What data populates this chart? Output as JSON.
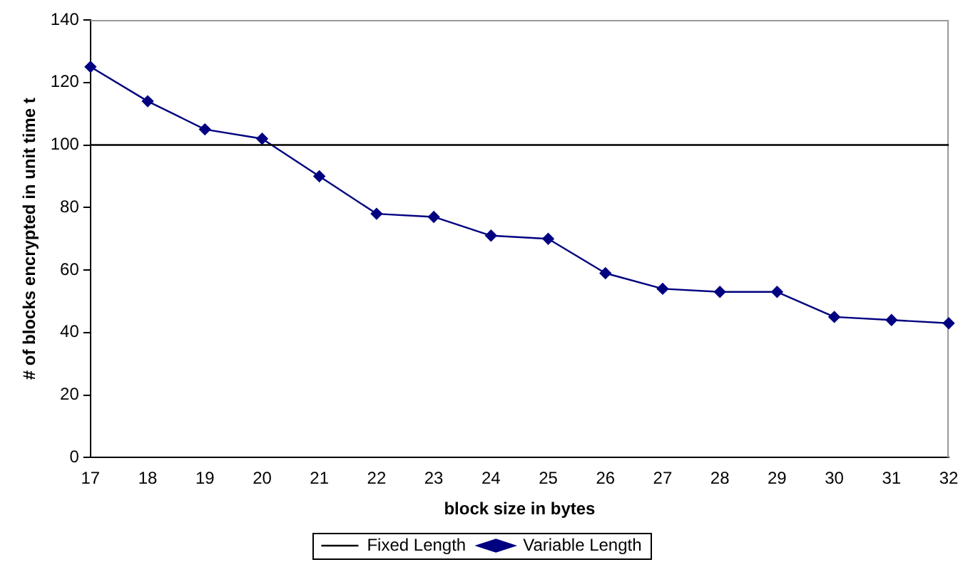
{
  "chart_data": {
    "type": "line",
    "xlabel": "block size in bytes",
    "ylabel": "# of blocks encrypted in unit time t",
    "categories": [
      "17",
      "18",
      "19",
      "20",
      "21",
      "22",
      "23",
      "24",
      "25",
      "26",
      "27",
      "28",
      "29",
      "30",
      "31",
      "32"
    ],
    "series": [
      {
        "name": "Fixed Length",
        "color": "#000000",
        "marker": "none",
        "values": [
          100,
          100,
          100,
          100,
          100,
          100,
          100,
          100,
          100,
          100,
          100,
          100,
          100,
          100,
          100,
          100
        ]
      },
      {
        "name": "Variable Length",
        "color": "#000080",
        "marker": "diamond",
        "values": [
          125,
          114,
          105,
          102,
          90,
          78,
          77,
          71,
          70,
          59,
          54,
          53,
          53,
          45,
          44,
          43
        ]
      }
    ],
    "ylim": [
      0,
      140
    ],
    "yticks": [
      0,
      20,
      40,
      60,
      80,
      100,
      120,
      140
    ],
    "grid": false,
    "legend": "bottom"
  }
}
